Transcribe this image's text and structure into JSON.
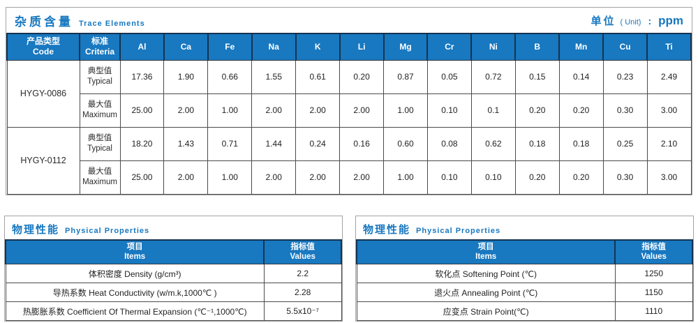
{
  "colors": {
    "accent_blue": "#1878c0",
    "header_border_navy": "#16334f",
    "grid_line": "#4a4a4a",
    "section_border": "#a3a3a3"
  },
  "trace_section": {
    "title_zh": "杂质含量",
    "title_en": "Trace Elements",
    "unit_zh": "单位",
    "unit_en": "( Unit)",
    "unit_colon": ":",
    "unit_value": "ppm",
    "table": {
      "code_header_zh": "产品类型",
      "code_header_en": "Code",
      "criteria_header_zh": "标准",
      "criteria_header_en": "Criteria",
      "elements": [
        "Al",
        "Ca",
        "Fe",
        "Na",
        "K",
        "Li",
        "Mg",
        "Cr",
        "Ni",
        "B",
        "Mn",
        "Cu",
        "Ti"
      ],
      "products": [
        {
          "code": "HYGY-0086",
          "rows": [
            {
              "type_zh": "典型值",
              "type_en": "Typical",
              "values": [
                "17.36",
                "1.90",
                "0.66",
                "1.55",
                "0.61",
                "0.20",
                "0.87",
                "0.05",
                "0.72",
                "0.15",
                "0.14",
                "0.23",
                "2.49"
              ]
            },
            {
              "type_zh": "最大值",
              "type_en": "Maximum",
              "values": [
                "25.00",
                "2.00",
                "1.00",
                "2.00",
                "2.00",
                "2.00",
                "1.00",
                "0.10",
                "0.1",
                "0.20",
                "0.20",
                "0.30",
                "3.00"
              ]
            }
          ]
        },
        {
          "code": "HYGY-0112",
          "rows": [
            {
              "type_zh": "典型值",
              "type_en": "Typical",
              "values": [
                "18.20",
                "1.43",
                "0.71",
                "1.44",
                "0.24",
                "0.16",
                "0.60",
                "0.08",
                "0.62",
                "0.18",
                "0.18",
                "0.25",
                "2.10"
              ]
            },
            {
              "type_zh": "最大值",
              "type_en": "Maximum",
              "values": [
                "25.00",
                "2.00",
                "1.00",
                "2.00",
                "2.00",
                "2.00",
                "1.00",
                "0.10",
                "0.10",
                "0.20",
                "0.20",
                "0.30",
                "3.00"
              ]
            }
          ]
        }
      ]
    }
  },
  "physical_sections": [
    {
      "title_zh": "物理性能",
      "title_en": "Physical Properties",
      "items_header_zh": "项目",
      "items_header_en": "Items",
      "values_header_zh": "指标值",
      "values_header_en": "Values",
      "rows": [
        {
          "item": "体积密度 Density (g/cm³)",
          "value": "2.2"
        },
        {
          "item": "导热系数 Heat Conductivity (w/m.k,1000℃ )",
          "value": "2.28"
        },
        {
          "item": "热膨胀系数 Coefficient Of Thermal Expansion (℃⁻¹,1000℃)",
          "value": "5.5x10⁻⁷"
        }
      ]
    },
    {
      "title_zh": "物理性能",
      "title_en": "Physical Properties",
      "items_header_zh": "项目",
      "items_header_en": "Items",
      "values_header_zh": "指标值",
      "values_header_en": "Values",
      "rows": [
        {
          "item": "软化点 Softening Point (℃)",
          "value": "1250"
        },
        {
          "item": "退火点 Annealing Point (℃)",
          "value": "1150"
        },
        {
          "item": "应变点 Strain Point(℃)",
          "value": "1110"
        }
      ]
    }
  ]
}
